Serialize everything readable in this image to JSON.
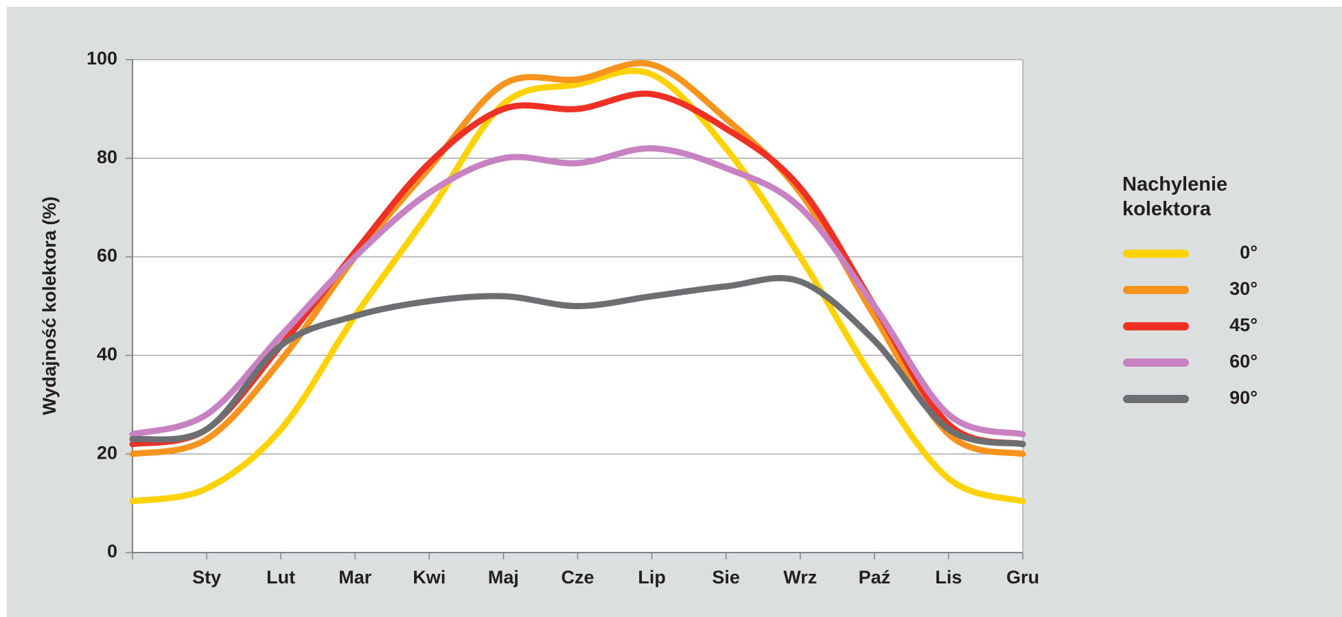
{
  "chart_data": {
    "type": "line",
    "ylabel": "Wydajność kolektora (%)",
    "legend_title": "Nachylenie kolektora",
    "legend": "right",
    "grid": true,
    "categories": [
      null,
      "Sty",
      "Lut",
      "Mar",
      "Kwi",
      "Maj",
      "Cze",
      "Lip",
      "Sie",
      "Wrz",
      "Paź",
      "Lis",
      "Gru"
    ],
    "ylim": [
      0,
      100
    ],
    "yticks": [
      0,
      20,
      40,
      60,
      80,
      100
    ],
    "series": [
      {
        "name": "0°",
        "color": "#ffd200",
        "values": [
          10.4,
          13,
          25,
          48,
          69,
          91,
          95,
          97,
          82,
          60,
          35,
          15,
          10.4
        ]
      },
      {
        "name": "30°",
        "color": "#f7941d",
        "values": [
          20,
          23,
          39,
          60,
          78,
          95,
          96,
          99,
          88,
          73,
          48,
          24,
          20
        ]
      },
      {
        "name": "45°",
        "color": "#ee3124",
        "values": [
          22,
          25,
          42,
          61,
          79,
          90,
          90,
          93,
          86,
          74,
          50,
          26,
          22
        ]
      },
      {
        "name": "60°",
        "color": "#c882c1",
        "values": [
          24,
          28,
          44,
          60,
          73,
          80,
          79,
          82,
          78,
          70,
          50,
          28,
          24
        ]
      },
      {
        "name": "90°",
        "color": "#6d6e71",
        "values": [
          23,
          25,
          42,
          48,
          51,
          52,
          50,
          52,
          54,
          55,
          43,
          25,
          22
        ]
      }
    ]
  }
}
